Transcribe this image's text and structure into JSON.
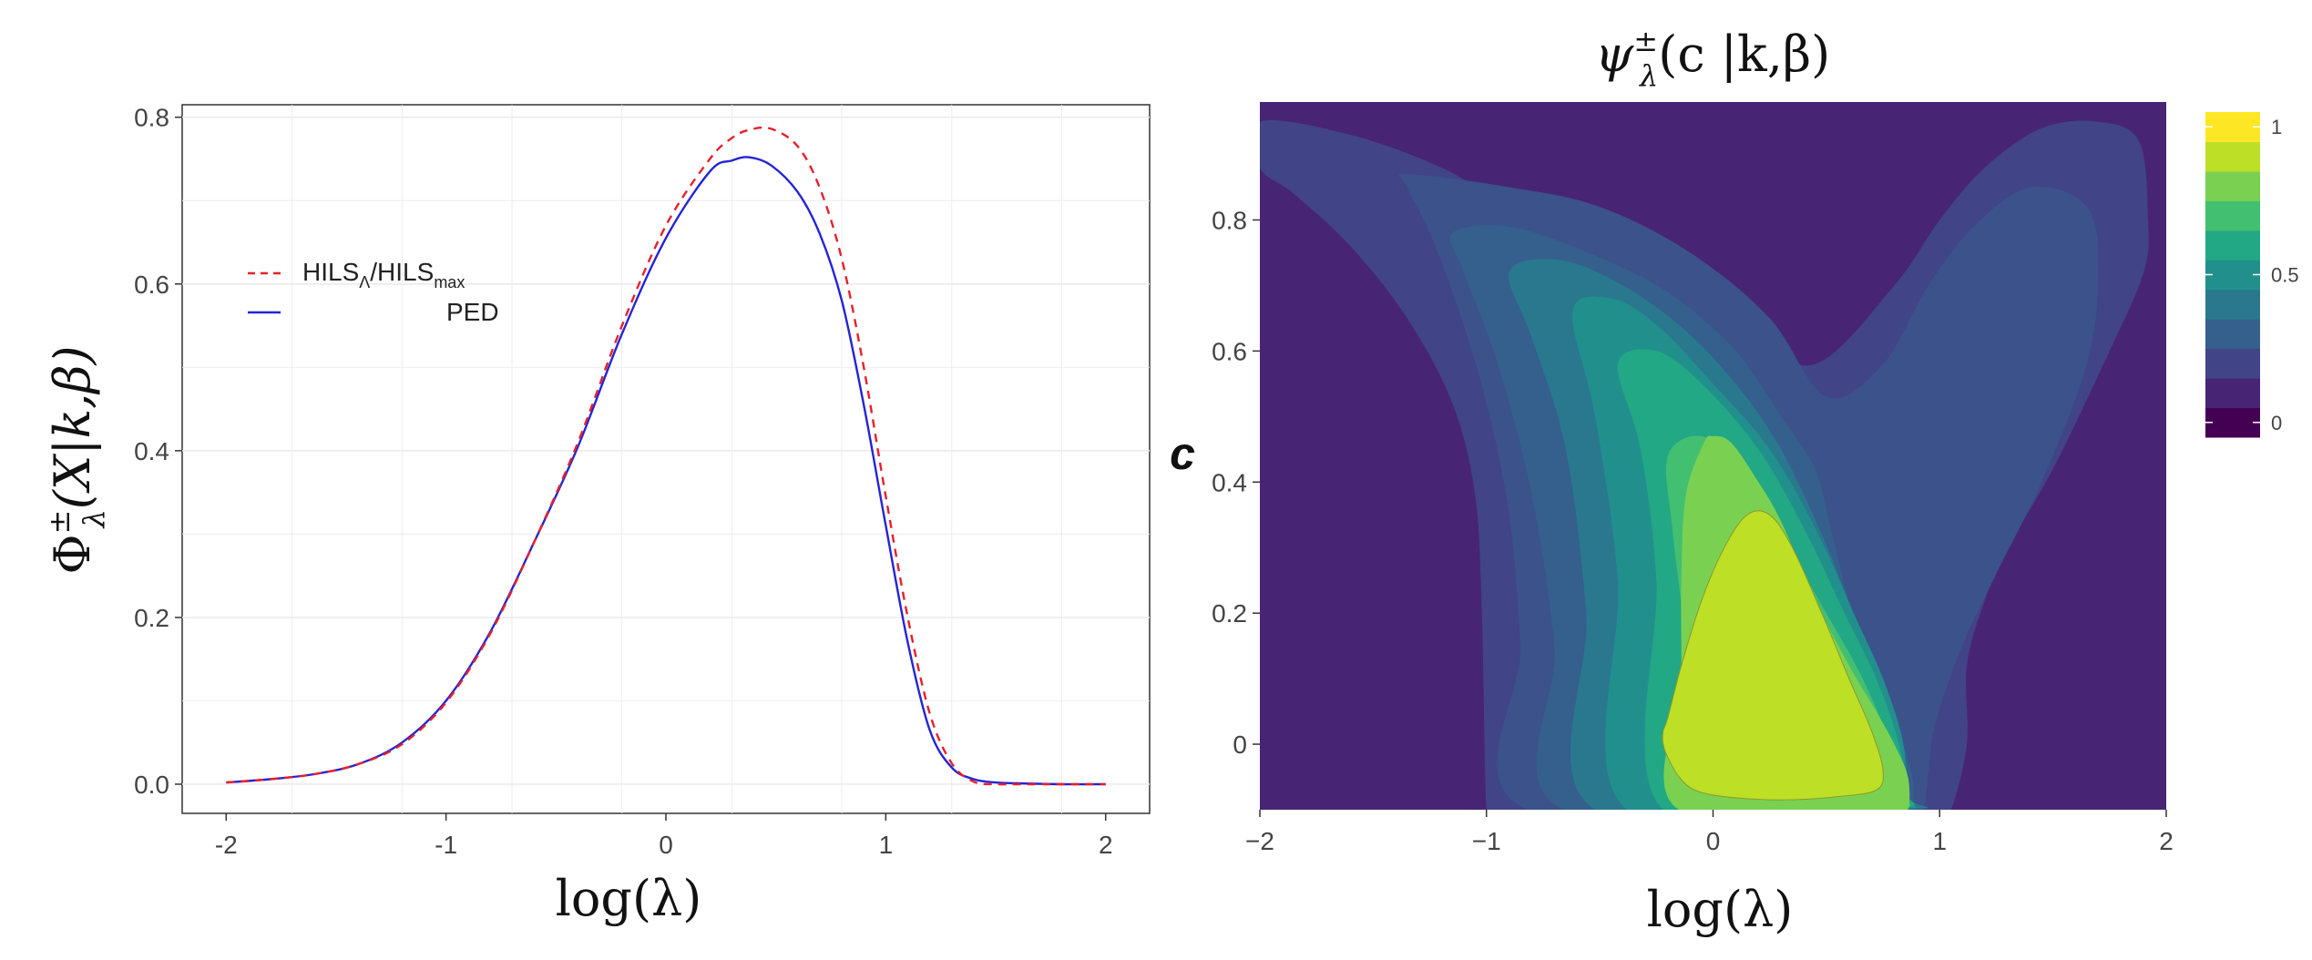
{
  "chart_data": [
    {
      "type": "line",
      "xlabel": "log(λ)",
      "ylabel": "Φ±λ(X|k,β)",
      "ylabel_parts": {
        "base": "Φ",
        "sup": "±",
        "sub": "λ",
        "args": "(X|k,β)"
      },
      "xlim": [
        -2.2,
        2.2
      ],
      "ylim": [
        -0.035,
        0.815
      ],
      "xticks": [
        -2,
        -1,
        0,
        1,
        2
      ],
      "xtick_labels": [
        "-2",
        "-1",
        "0",
        "1",
        "2"
      ],
      "yticks": [
        0,
        0.2,
        0.4,
        0.6,
        0.8
      ],
      "ytick_labels": [
        "0.0",
        "0.2",
        "0.4",
        "0.6",
        "0.8"
      ],
      "grid": true,
      "legend_position": "top-left",
      "legend": [
        {
          "label": "HILSΛ/HILSmax",
          "base": "HILS",
          "sub": "Λ",
          "mid": "/HILS",
          "sub2": "max",
          "style": "dashed",
          "color": "#e8202a"
        },
        {
          "label": "PED",
          "style": "solid",
          "color": "#2424d6"
        }
      ],
      "x": [
        -2.0,
        -1.8,
        -1.6,
        -1.4,
        -1.2,
        -1.0,
        -0.8,
        -0.6,
        -0.4,
        -0.2,
        0.0,
        0.2,
        0.3,
        0.38,
        0.48,
        0.6,
        0.7,
        0.8,
        0.9,
        1.0,
        1.1,
        1.2,
        1.3,
        1.4,
        1.5,
        1.6,
        1.8,
        2.0
      ],
      "series": [
        {
          "name": "HILSΛ/HILSmax",
          "style": "dashed",
          "color": "#e8202a",
          "values": [
            0.002,
            0.006,
            0.012,
            0.024,
            0.048,
            0.098,
            0.18,
            0.29,
            0.41,
            0.55,
            0.67,
            0.75,
            0.775,
            0.785,
            0.786,
            0.765,
            0.715,
            0.63,
            0.5,
            0.345,
            0.2,
            0.085,
            0.025,
            0.003,
            0.0,
            0.0,
            0.0,
            0.0
          ]
        },
        {
          "name": "PED",
          "style": "solid",
          "color": "#2424d6",
          "values": [
            0.002,
            0.006,
            0.012,
            0.024,
            0.05,
            0.1,
            0.182,
            0.29,
            0.405,
            0.54,
            0.655,
            0.735,
            0.748,
            0.752,
            0.742,
            0.71,
            0.66,
            0.58,
            0.455,
            0.31,
            0.17,
            0.065,
            0.02,
            0.006,
            0.002,
            0.001,
            0.0,
            0.0
          ]
        }
      ]
    },
    {
      "type": "heatmap",
      "title": "ψ±λ(c |k,β)",
      "title_parts": {
        "base": "ψ",
        "sup": "±",
        "sub": "λ",
        "args": "(c |k,β)"
      },
      "xlabel": "log(λ)",
      "ylabel": "c",
      "xlim": [
        -2,
        2
      ],
      "ylim": [
        -0.1,
        0.98
      ],
      "xticks": [
        -2,
        -1,
        0,
        1,
        2
      ],
      "xtick_labels": [
        "−2",
        "−1",
        "0",
        "1",
        "2"
      ],
      "yticks": [
        0,
        0.2,
        0.4,
        0.6,
        0.8
      ],
      "ytick_labels": [
        "0",
        "0.2",
        "0.4",
        "0.6",
        "0.8"
      ],
      "colorbar_ticks": [
        0,
        0.5,
        1
      ],
      "colorbar_tick_labels": [
        "0",
        "0.5",
        "1"
      ],
      "colorbar_colors": [
        "#440154",
        "#482475",
        "#414487",
        "#355f8d",
        "#2a788e",
        "#21908d",
        "#22a884",
        "#43bf71",
        "#7ad151",
        "#bddf26",
        "#fde725"
      ],
      "background_level": 0.1,
      "contour_levels": [
        {
          "level": 0.2,
          "color": "#414487",
          "x": [
            -2.0,
            -1.6,
            -1.2,
            -0.9,
            -0.6,
            -0.2,
            0.15,
            0.45,
            0.8,
            1.0,
            1.2,
            1.45,
            1.7,
            1.88,
            1.92,
            1.9,
            1.75,
            1.5,
            1.3,
            1.2,
            1.12,
            1.12,
            1.05,
            1.0,
            1.0,
            1.02,
            1.02,
            1.0,
            0.97,
            0.85,
            0.6,
            0.3,
            0.0,
            -0.35,
            -0.7,
            -0.96,
            -1.0,
            -1.02,
            -1.05,
            -1.15,
            -1.35,
            -1.6,
            -1.85,
            -2.0
          ],
          "y": [
            0.95,
            0.93,
            0.88,
            0.82,
            0.77,
            0.7,
            0.63,
            0.58,
            0.7,
            0.8,
            0.88,
            0.94,
            0.95,
            0.92,
            0.8,
            0.72,
            0.6,
            0.42,
            0.3,
            0.22,
            0.12,
            0.0,
            -0.1,
            -0.1,
            -0.1,
            -0.1,
            -0.1,
            -0.1,
            -0.1,
            -0.1,
            -0.1,
            -0.1,
            -0.1,
            -0.1,
            -0.1,
            -0.1,
            -0.1,
            0.2,
            0.38,
            0.52,
            0.65,
            0.76,
            0.84,
            0.88
          ]
        },
        {
          "level": 0.3,
          "color": "#3b528b",
          "x": [
            -1.35,
            -0.9,
            -0.5,
            -0.1,
            0.25,
            0.5,
            0.75,
            0.95,
            1.15,
            1.4,
            1.65,
            1.7,
            1.65,
            1.45,
            1.25,
            1.1,
            0.98,
            0.95,
            0.93,
            0.9,
            0.88,
            -0.82,
            -0.85,
            -0.9,
            -1.0,
            -1.12,
            -1.25,
            -1.35
          ],
          "y": [
            0.87,
            0.85,
            0.82,
            0.75,
            0.65,
            0.53,
            0.58,
            0.7,
            0.79,
            0.85,
            0.82,
            0.72,
            0.58,
            0.4,
            0.26,
            0.15,
            0.03,
            -0.05,
            -0.1,
            -0.1,
            -0.1,
            -0.1,
            0.15,
            0.35,
            0.52,
            0.66,
            0.78,
            0.85
          ]
        },
        {
          "level": 0.4,
          "color": "#355f8d",
          "x": [
            -1.15,
            -0.9,
            -0.55,
            -0.2,
            0.1,
            0.3,
            0.45,
            0.52,
            0.6,
            0.72,
            0.82,
            0.88,
            0.88,
            0.85,
            -0.66,
            -0.7,
            -0.8,
            -0.95,
            -1.1
          ],
          "y": [
            0.78,
            0.79,
            0.75,
            0.69,
            0.6,
            0.5,
            0.42,
            0.33,
            0.22,
            0.12,
            0.02,
            -0.05,
            -0.1,
            -0.1,
            -0.1,
            0.15,
            0.38,
            0.58,
            0.72
          ]
        },
        {
          "level": 0.5,
          "color": "#2a788e",
          "x": [
            -0.9,
            -0.7,
            -0.45,
            -0.15,
            0.1,
            0.3,
            0.48,
            0.62,
            0.75,
            0.84,
            0.86,
            0.84,
            -0.52,
            -0.56,
            -0.65,
            -0.8
          ],
          "y": [
            0.72,
            0.74,
            0.71,
            0.64,
            0.55,
            0.45,
            0.32,
            0.2,
            0.1,
            0.0,
            -0.08,
            -0.1,
            -0.1,
            0.2,
            0.45,
            0.62
          ]
        },
        {
          "level": 0.6,
          "color": "#21908d",
          "x": [
            -0.62,
            -0.45,
            -0.25,
            0.0,
            0.25,
            0.45,
            0.62,
            0.75,
            0.84,
            0.84,
            0.8,
            -0.38,
            -0.42,
            -0.52
          ],
          "y": [
            0.66,
            0.68,
            0.64,
            0.55,
            0.45,
            0.33,
            0.2,
            0.1,
            0.0,
            -0.08,
            -0.1,
            -0.1,
            0.25,
            0.5
          ]
        },
        {
          "level": 0.7,
          "color": "#22a884",
          "x": [
            -0.42,
            -0.25,
            -0.05,
            0.2,
            0.4,
            0.58,
            0.72,
            0.82,
            0.84,
            0.8,
            -0.22,
            -0.25,
            -0.32
          ],
          "y": [
            0.58,
            0.6,
            0.55,
            0.45,
            0.33,
            0.2,
            0.1,
            0.0,
            -0.07,
            -0.1,
            -0.1,
            0.25,
            0.45
          ]
        },
        {
          "level": 0.8,
          "color": "#43bf71",
          "x": [
            -0.2,
            -0.05,
            0.12,
            0.3,
            0.5,
            0.66,
            0.78,
            0.82,
            0.8,
            -0.06,
            -0.12,
            -0.18
          ],
          "y": [
            0.44,
            0.47,
            0.42,
            0.32,
            0.2,
            0.1,
            0.0,
            -0.07,
            -0.1,
            -0.1,
            0.15,
            0.33
          ]
        },
        {
          "level": 0.9,
          "color": "#7ad151",
          "x": [
            -0.12,
            -0.04,
            0.0,
            0.08,
            0.2,
            0.3,
            0.45,
            0.6,
            0.72,
            0.8,
            0.86,
            0.86,
            0.8,
            -0.15,
            -0.14,
            -0.14
          ],
          "y": [
            0.38,
            0.46,
            0.47,
            0.46,
            0.4,
            0.34,
            0.22,
            0.12,
            0.05,
            0.0,
            -0.05,
            -0.1,
            -0.1,
            -0.1,
            0.1,
            0.25
          ]
        },
        {
          "level": 1.0,
          "color": "#bddf26",
          "x": [
            -0.2,
            -0.14,
            -0.05,
            0.05,
            0.15,
            0.25,
            0.35,
            0.48,
            0.6,
            0.7,
            0.75,
            0.72,
            0.55,
            0.3,
            0.05,
            -0.08,
            -0.15,
            -0.2,
            -0.22,
            -0.22
          ],
          "y": [
            0.04,
            0.12,
            0.22,
            0.3,
            0.35,
            0.35,
            0.3,
            0.2,
            0.1,
            0.02,
            -0.04,
            -0.07,
            -0.08,
            -0.085,
            -0.08,
            -0.07,
            -0.05,
            -0.02,
            0.0,
            0.02
          ]
        }
      ]
    }
  ]
}
